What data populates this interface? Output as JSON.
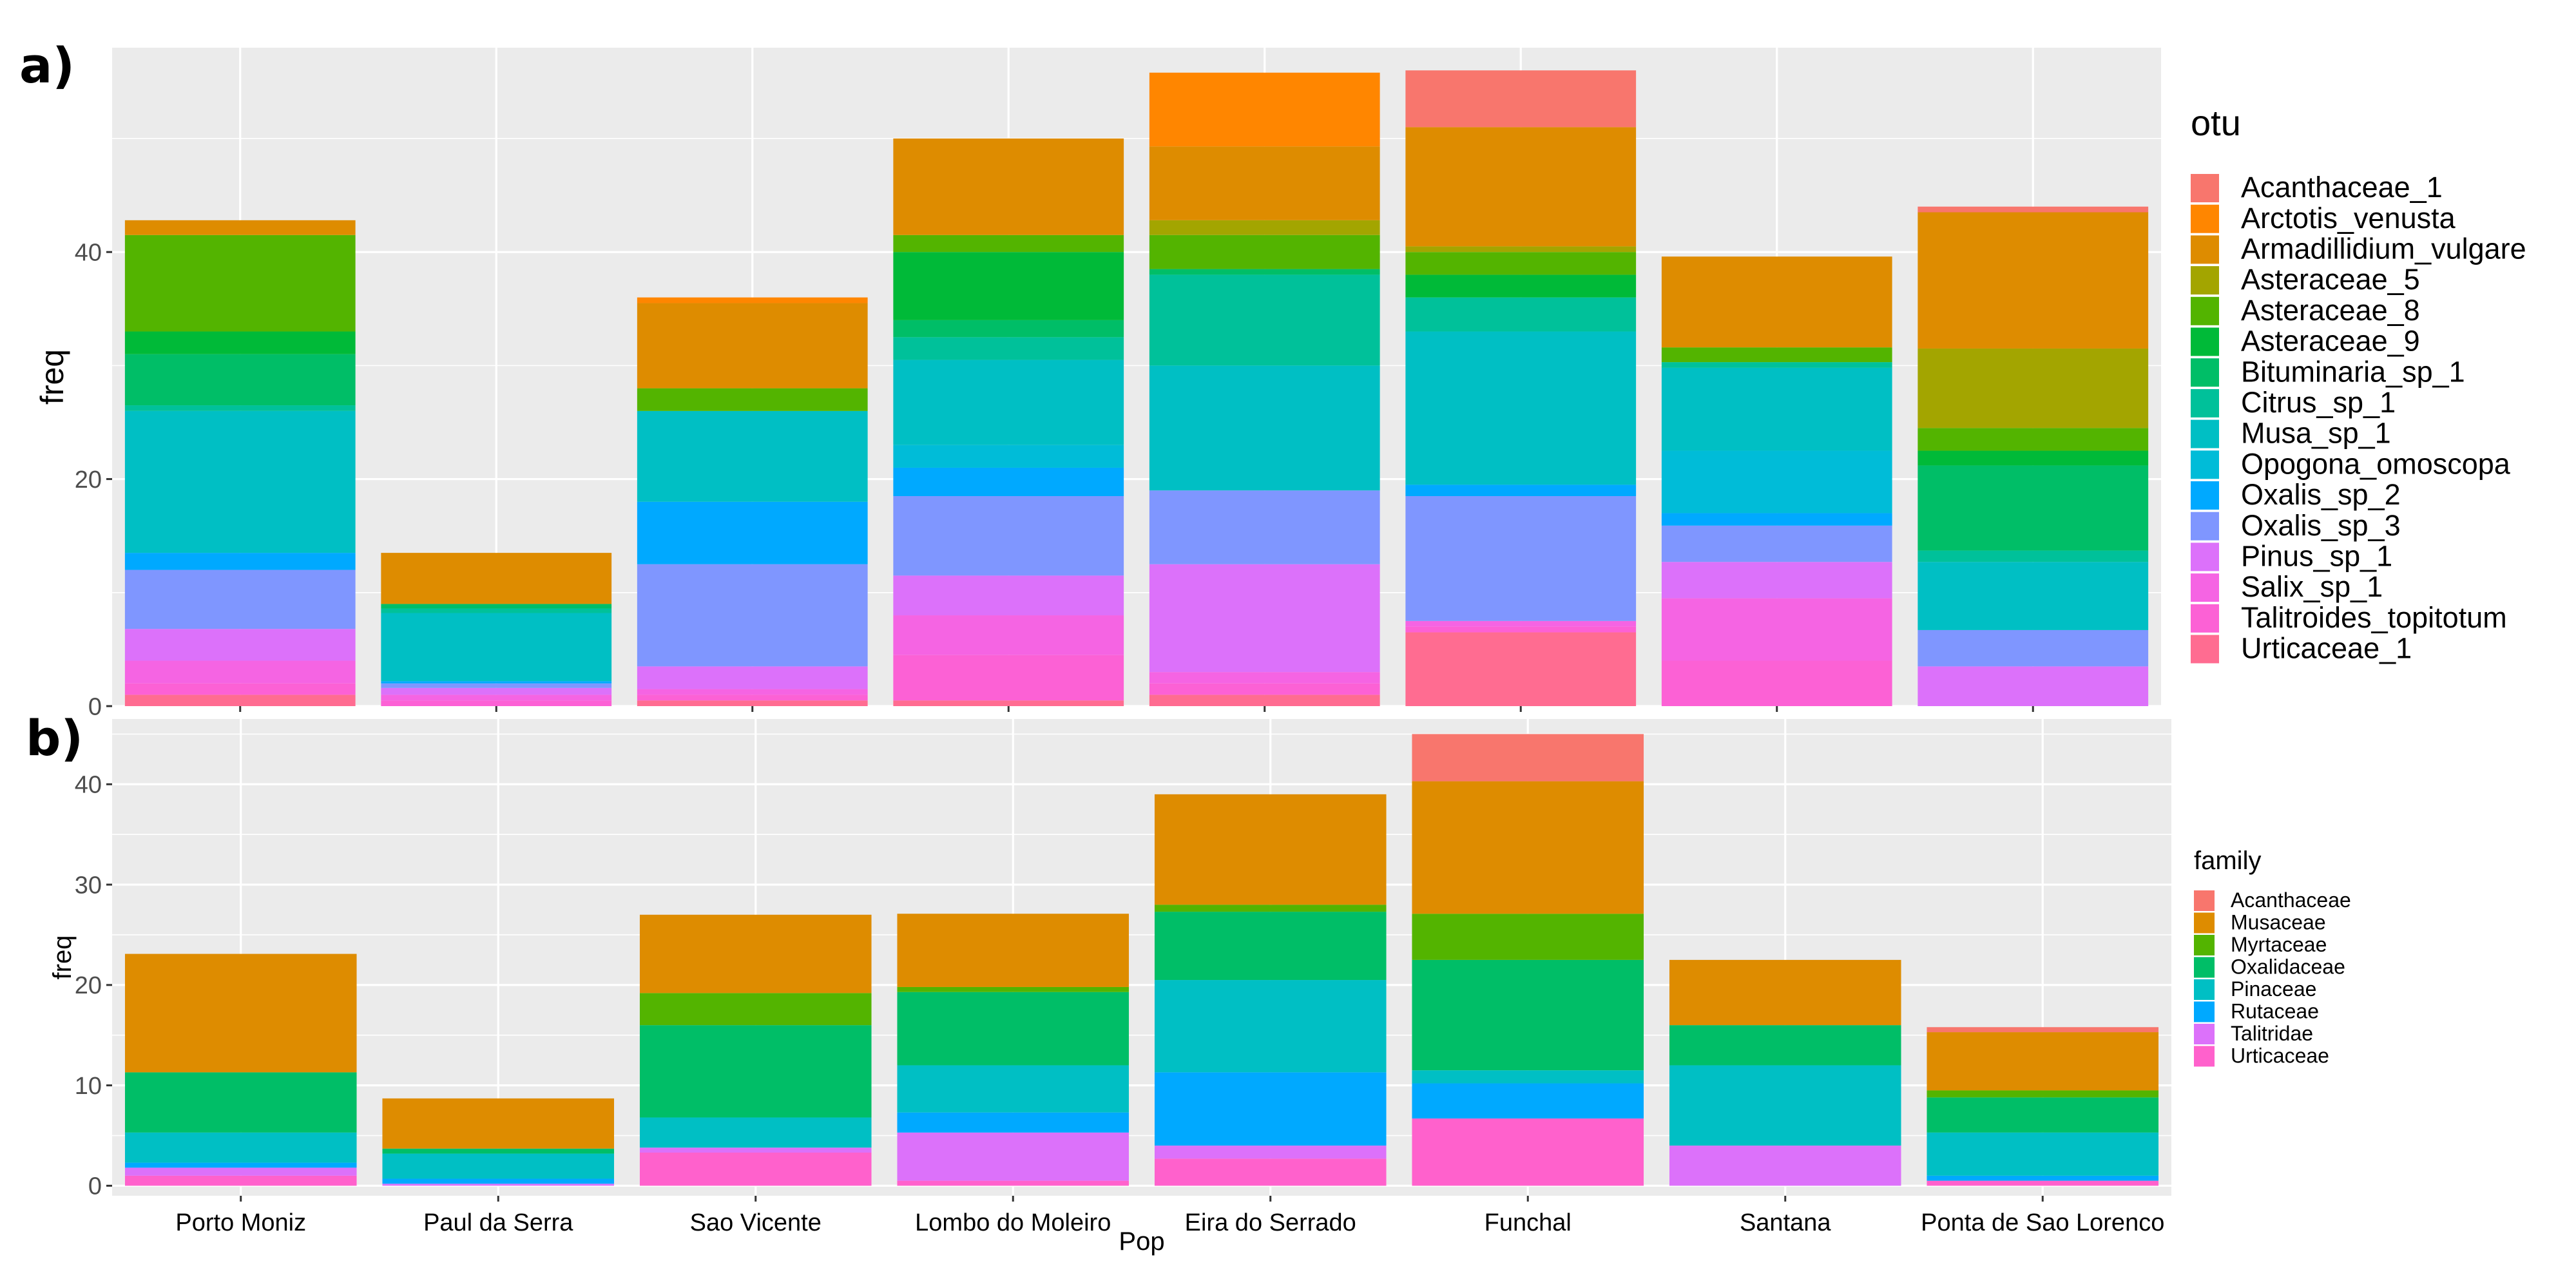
{
  "chart_data": [
    {
      "panel_label": "a)",
      "type": "bar",
      "stacked": true,
      "ylabel": "freq",
      "xlabel": "",
      "ylim": [
        0,
        58
      ],
      "yticks": [
        0,
        20,
        40
      ],
      "grid": true,
      "legend_position": "right",
      "legend_title": "otu",
      "categories": [
        "Porto Moniz",
        "Paul da Serra",
        "Sao Vicente",
        "Lombo do Moleiro",
        "Eira do Serrado",
        "Funchal",
        "Santana",
        "Ponta de Sao Lorenco"
      ],
      "series": [
        {
          "name": "Urticaceae_1",
          "color": "#FF6C91",
          "values": [
            1,
            0,
            0.5,
            0.5,
            1,
            6.5,
            0,
            0
          ]
        },
        {
          "name": "Talitroides_topitotum",
          "color": "#FC61D5",
          "values": [
            1,
            0.5,
            0.5,
            4,
            1,
            0.5,
            4,
            0
          ]
        },
        {
          "name": "Salix_sp_1",
          "color": "#F564E3",
          "values": [
            2,
            0.5,
            0.5,
            3.5,
            1,
            0.5,
            5.5,
            0
          ]
        },
        {
          "name": "Pinus_sp_1",
          "color": "#DC71FA",
          "values": [
            2.8,
            0.6,
            2,
            3.5,
            9.5,
            0,
            3.2,
            3.5
          ]
        },
        {
          "name": "Oxalis_sp_3",
          "color": "#7F96FF",
          "values": [
            5.2,
            0.4,
            9,
            7,
            6.5,
            11,
            3.2,
            3.2
          ]
        },
        {
          "name": "Oxalis_sp_2",
          "color": "#00A9FF",
          "values": [
            1.5,
            0.2,
            5.5,
            2.5,
            0,
            1,
            1.1,
            0
          ]
        },
        {
          "name": "Opogona_omoscopa",
          "color": "#00BCD8",
          "values": [
            0,
            0,
            0,
            2,
            0,
            0,
            5.5,
            0
          ]
        },
        {
          "name": "Musa_sp_1",
          "color": "#00BFC4",
          "values": [
            12.5,
            6,
            8,
            7.5,
            11,
            13.5,
            7.3,
            6
          ]
        },
        {
          "name": "Citrus_sp_1",
          "color": "#00C19A",
          "values": [
            0.5,
            0.4,
            0,
            2,
            8,
            3,
            0.5,
            1
          ]
        },
        {
          "name": "Bituminaria_sp_1",
          "color": "#00BE67",
          "values": [
            4.5,
            0.4,
            0,
            1.5,
            0.5,
            0,
            0,
            7.5
          ]
        },
        {
          "name": "Asteraceae_9",
          "color": "#00BA38",
          "values": [
            2,
            0,
            0,
            6,
            0,
            2,
            0,
            1.3
          ]
        },
        {
          "name": "Asteraceae_8",
          "color": "#53B400",
          "values": [
            8.5,
            0,
            2,
            1.5,
            3,
            2,
            1.3,
            2
          ]
        },
        {
          "name": "Asteraceae_5",
          "color": "#A3A500",
          "values": [
            0,
            0,
            0,
            0,
            1.3,
            0.5,
            0,
            7
          ]
        },
        {
          "name": "Armadillidium_vulgare",
          "color": "#DE8C00",
          "values": [
            1.3,
            4.5,
            7.5,
            8.5,
            6.5,
            10.5,
            8,
            12
          ]
        },
        {
          "name": "Arctotis_venusta",
          "color": "#FF8600",
          "values": [
            0,
            0,
            0.5,
            0,
            6.5,
            0,
            0,
            0
          ]
        },
        {
          "name": "Acanthaceae_1",
          "color": "#F8766D",
          "values": [
            0,
            0,
            0,
            0,
            0,
            5,
            0,
            0.5
          ]
        }
      ]
    },
    {
      "panel_label": "b)",
      "type": "bar",
      "stacked": true,
      "ylabel": "freq",
      "xlabel": "Pop",
      "ylim": [
        -1,
        46.5
      ],
      "yticks": [
        0,
        10,
        20,
        30,
        40
      ],
      "grid": true,
      "legend_position": "right",
      "legend_title": "family",
      "categories": [
        "Porto Moniz",
        "Paul da Serra",
        "Sao Vicente",
        "Lombo do Moleiro",
        "Eira do Serrado",
        "Funchal",
        "Santana",
        "Ponta de Sao Lorenco"
      ],
      "series": [
        {
          "name": "Urticaceae",
          "color": "#FF61CC",
          "values": [
            1,
            0,
            3.3,
            0.5,
            2.7,
            6.7,
            0,
            0.5
          ]
        },
        {
          "name": "Talitridae",
          "color": "#DC71FA",
          "values": [
            0.8,
            0.2,
            0.5,
            4.8,
            1.3,
            0,
            4,
            0
          ]
        },
        {
          "name": "Rutaceae",
          "color": "#00A9FF",
          "values": [
            0.5,
            0.5,
            0,
            2,
            7.3,
            3.5,
            0,
            0.5
          ]
        },
        {
          "name": "Pinaceae",
          "color": "#00BFC4",
          "values": [
            3,
            2.5,
            3,
            4.7,
            9.2,
            1.3,
            8,
            4.3
          ]
        },
        {
          "name": "Oxalidaceae",
          "color": "#00BE67",
          "values": [
            6,
            0.5,
            9.2,
            7.3,
            6.8,
            11,
            4,
            3.5
          ]
        },
        {
          "name": "Myrtaceae",
          "color": "#53B400",
          "values": [
            0,
            0,
            3.2,
            0.5,
            0.7,
            4.6,
            0,
            0.7
          ]
        },
        {
          "name": "Musaceae",
          "color": "#DE8C00",
          "values": [
            11.8,
            5,
            7.8,
            7.3,
            11,
            13.2,
            6.5,
            5.8
          ]
        },
        {
          "name": "Acanthaceae",
          "color": "#F8766D",
          "values": [
            0,
            0,
            0,
            0,
            0,
            4.7,
            0,
            0.5
          ]
        }
      ]
    }
  ]
}
